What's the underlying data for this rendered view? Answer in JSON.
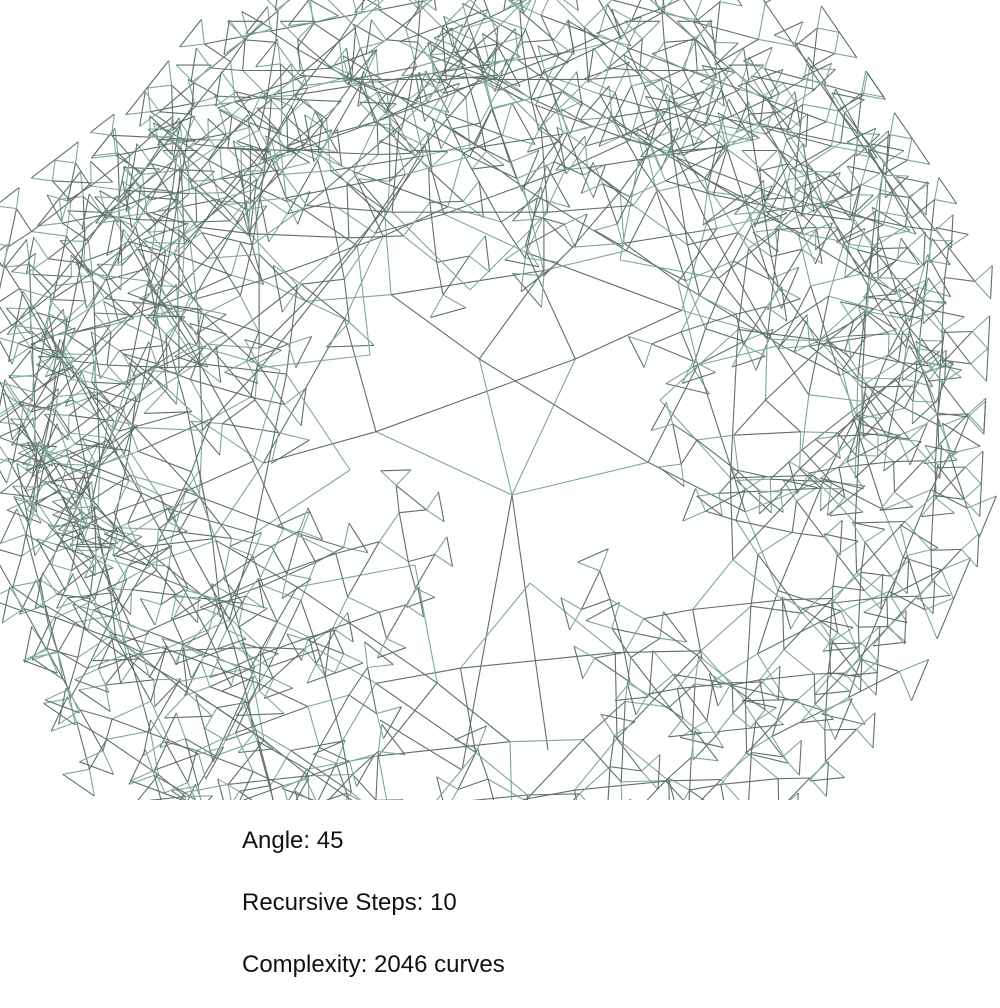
{
  "fractal": {
    "stroke_color": "#5f6f6a",
    "accent_color": "#7fa898"
  },
  "info": {
    "angle_label": "Angle: 45",
    "steps_label": "Recursive Steps: 10",
    "complexity_label": "Complexity: 2046 curves"
  }
}
